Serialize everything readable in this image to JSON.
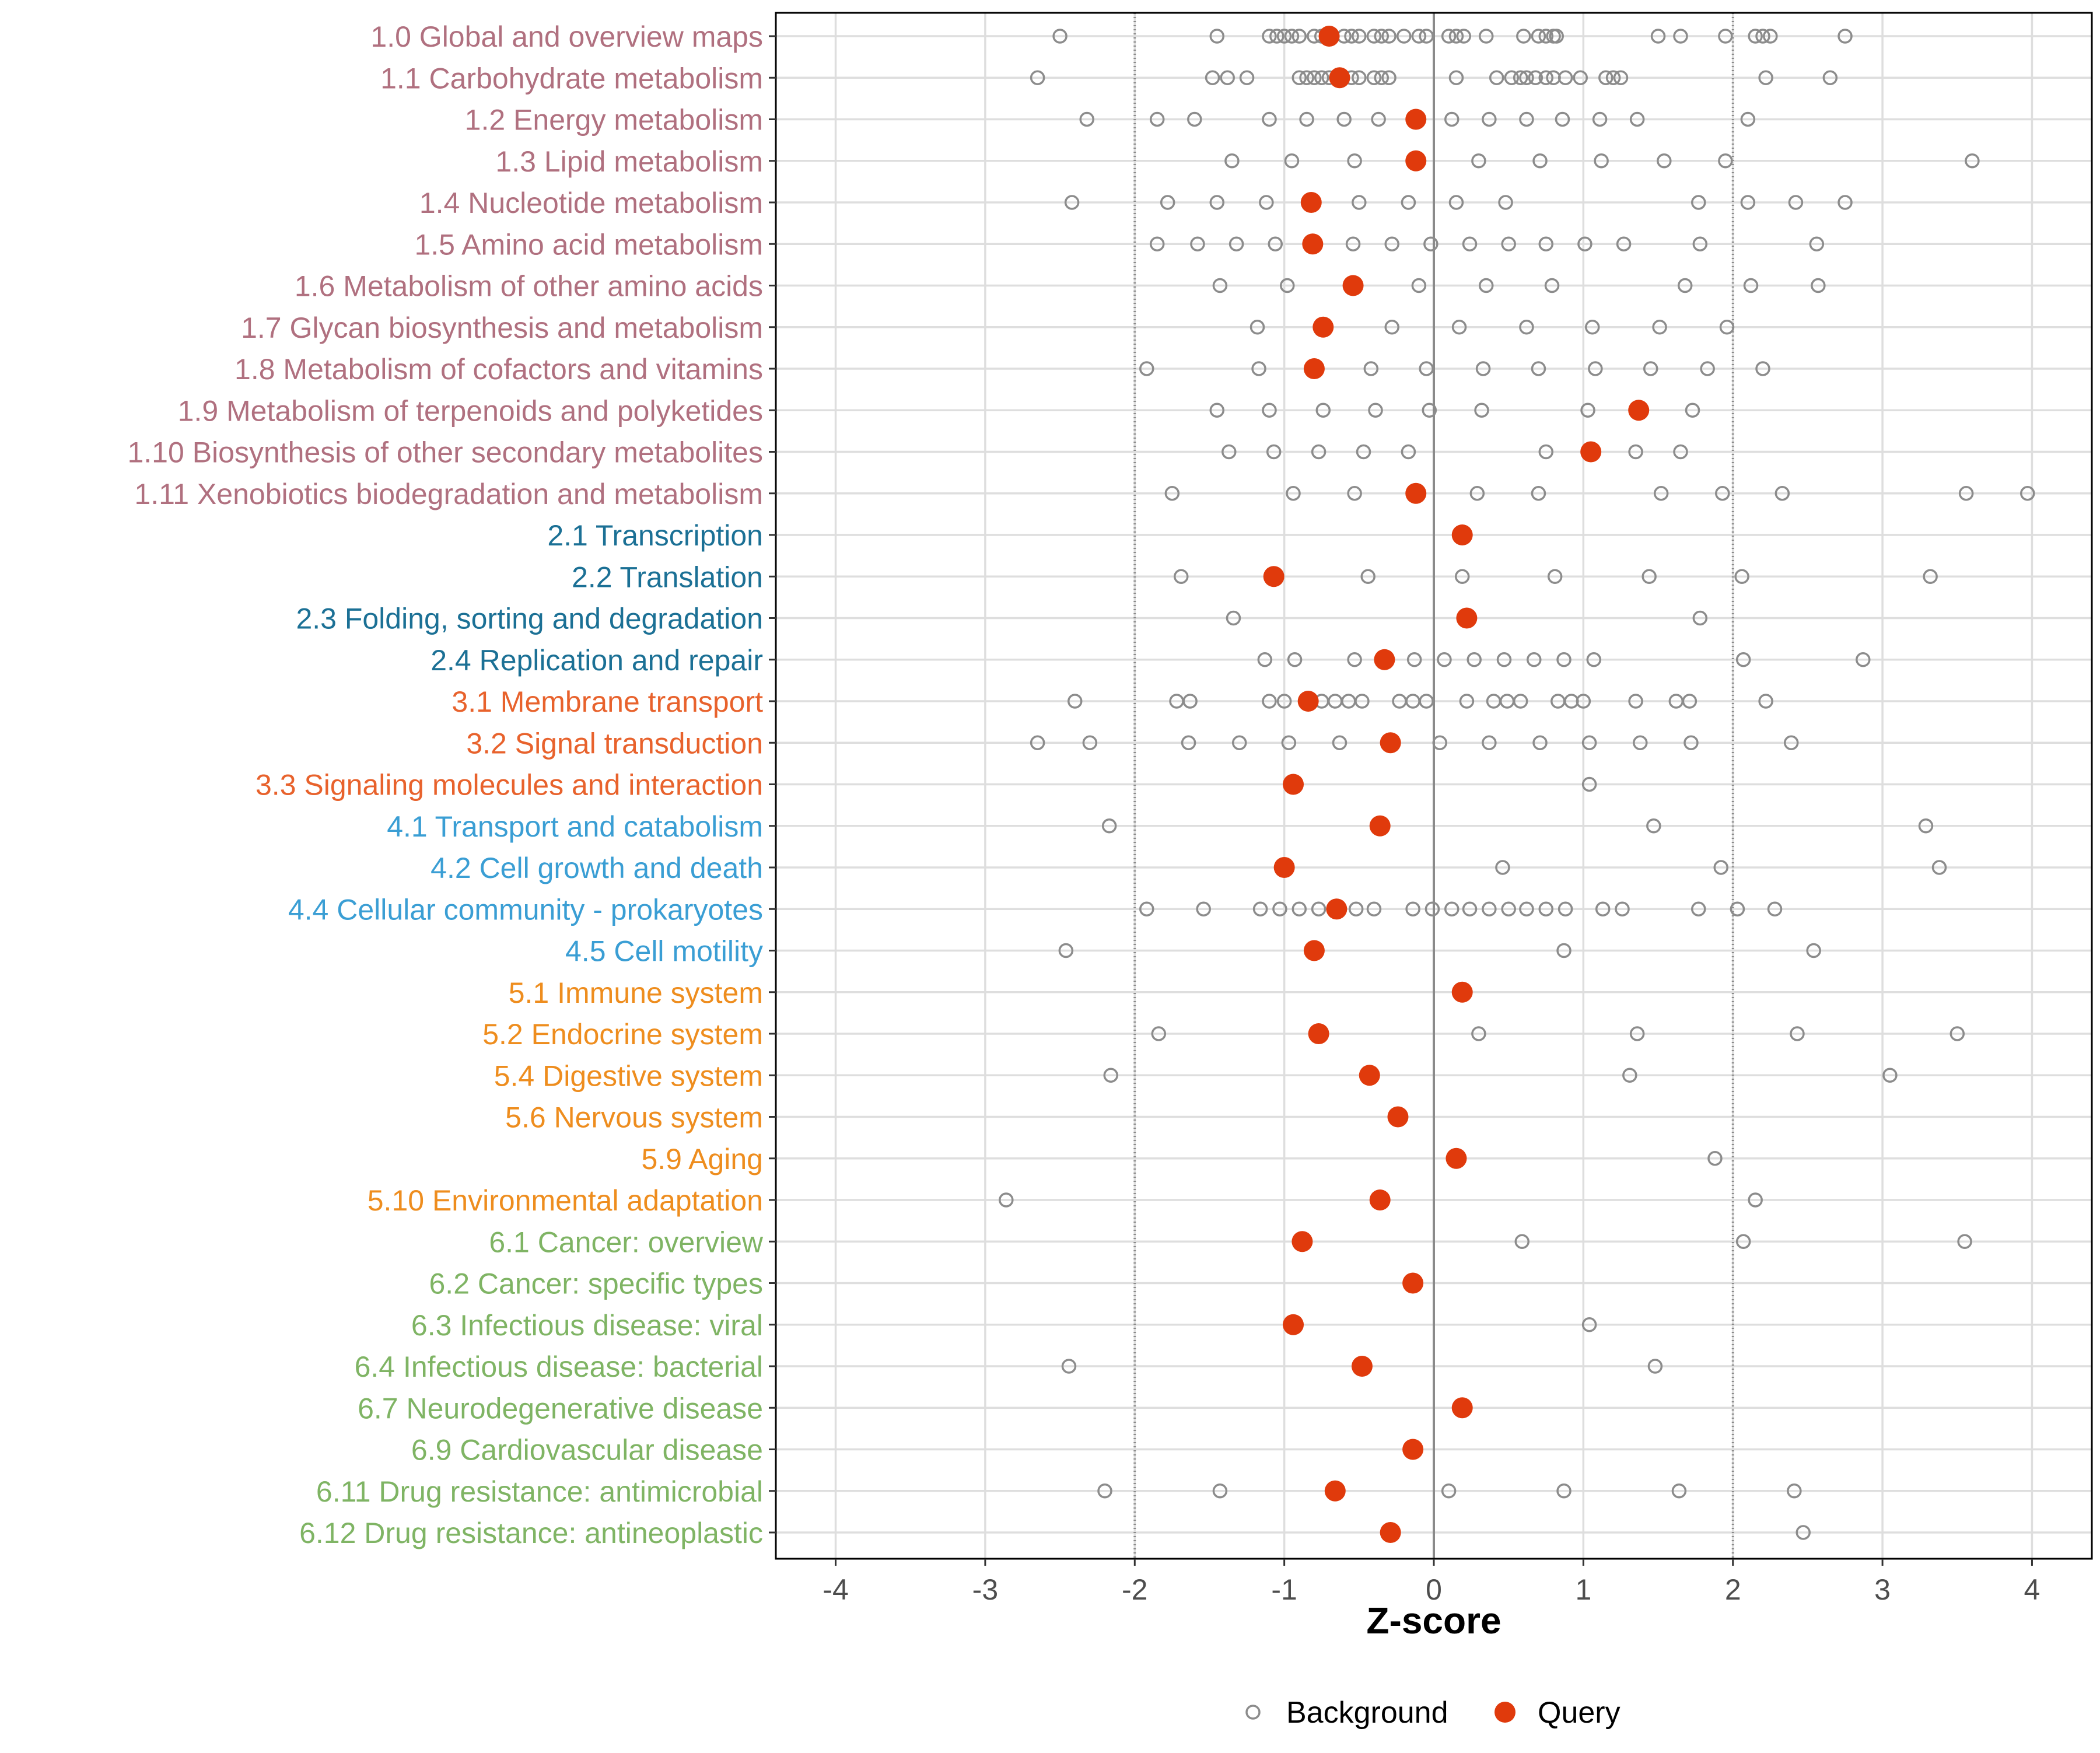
{
  "chart_data": {
    "type": "scatter",
    "xlabel": "Z-score",
    "ylabel": "",
    "xlim": [
      -4.4,
      4.4
    ],
    "x_ticks": [
      -4,
      -3,
      -2,
      -1,
      0,
      1,
      2,
      3,
      4
    ],
    "x_tick_labels": [
      "-4",
      "-3",
      "-2",
      "-1",
      "0",
      "1",
      "2",
      "3",
      "4"
    ],
    "reference_lines": {
      "solid": [
        0
      ],
      "dotted": [
        -2,
        2
      ]
    },
    "grid": true,
    "legend": {
      "position": "bottom",
      "entries": [
        {
          "name": "Background",
          "marker": "open-circle",
          "color": "#8c8c8c"
        },
        {
          "name": "Query",
          "marker": "filled-circle",
          "color": "#e03a0c"
        }
      ]
    },
    "group_colors": {
      "metabolism": "#b0707f",
      "genetic": "#1b7095",
      "environmental": "#e8622c",
      "cellular": "#3a9ed4",
      "organismal": "#ee8d1e",
      "disease": "#7fb464"
    },
    "categories": [
      {
        "label": "1.0 Global and overview maps",
        "group": "metabolism",
        "query": -0.7,
        "background": [
          -2.5,
          -1.45,
          -1.1,
          -1.05,
          -1.0,
          -0.95,
          -0.9,
          -0.8,
          -0.75,
          -0.68,
          -0.6,
          -0.55,
          -0.5,
          -0.4,
          -0.35,
          -0.3,
          -0.2,
          -0.1,
          -0.05,
          0.1,
          0.15,
          0.2,
          0.35,
          0.6,
          0.7,
          0.75,
          0.8,
          0.82,
          1.5,
          1.65,
          1.95,
          2.15,
          2.2,
          2.25,
          2.75
        ]
      },
      {
        "label": "1.1 Carbohydrate metabolism",
        "group": "metabolism",
        "query": -0.63,
        "background": [
          -2.65,
          -1.48,
          -1.38,
          -1.25,
          -0.9,
          -0.85,
          -0.8,
          -0.75,
          -0.7,
          -0.65,
          -0.55,
          -0.5,
          -0.4,
          -0.35,
          -0.3,
          0.15,
          0.42,
          0.52,
          0.58,
          0.62,
          0.68,
          0.75,
          0.8,
          0.88,
          0.98,
          1.15,
          1.2,
          1.25,
          2.22,
          2.65
        ]
      },
      {
        "label": "1.2 Energy metabolism",
        "group": "metabolism",
        "query": -0.12,
        "background": [
          -2.32,
          -1.85,
          -1.6,
          -1.1,
          -0.85,
          -0.6,
          -0.37,
          0.12,
          0.37,
          0.62,
          0.86,
          1.11,
          1.36,
          2.1
        ]
      },
      {
        "label": "1.3 Lipid metabolism",
        "group": "metabolism",
        "query": -0.12,
        "background": [
          -1.35,
          -0.95,
          -0.53,
          0.3,
          0.71,
          1.12,
          1.54,
          1.95,
          3.6
        ]
      },
      {
        "label": "1.4 Nucleotide metabolism",
        "group": "metabolism",
        "query": -0.82,
        "background": [
          -2.42,
          -1.78,
          -1.45,
          -1.12,
          -0.5,
          -0.17,
          0.15,
          0.48,
          1.77,
          2.1,
          2.42,
          2.75
        ]
      },
      {
        "label": "1.5 Amino acid metabolism",
        "group": "metabolism",
        "query": -0.81,
        "background": [
          -1.85,
          -1.58,
          -1.32,
          -1.06,
          -0.54,
          -0.28,
          -0.02,
          0.24,
          0.5,
          0.75,
          1.01,
          1.27,
          1.78,
          2.56
        ]
      },
      {
        "label": "1.6 Metabolism of other amino acids",
        "group": "metabolism",
        "query": -0.54,
        "background": [
          -1.43,
          -0.98,
          -0.1,
          0.35,
          0.79,
          1.68,
          2.12,
          2.57
        ]
      },
      {
        "label": "1.7 Glycan biosynthesis and metabolism",
        "group": "metabolism",
        "query": -0.74,
        "background": [
          -1.18,
          -0.28,
          0.17,
          0.62,
          1.06,
          1.51,
          1.96
        ]
      },
      {
        "label": "1.8 Metabolism of cofactors and vitamins",
        "group": "metabolism",
        "query": -0.8,
        "background": [
          -1.92,
          -1.17,
          -0.42,
          -0.05,
          0.33,
          0.7,
          1.08,
          1.45,
          1.83,
          2.2
        ]
      },
      {
        "label": "1.9 Metabolism of terpenoids and polyketides",
        "group": "metabolism",
        "query": 1.37,
        "background": [
          -1.45,
          -1.1,
          -0.74,
          -0.39,
          -0.03,
          0.32,
          1.03,
          1.73
        ]
      },
      {
        "label": "1.10 Biosynthesis of other secondary metabolites",
        "group": "metabolism",
        "query": 1.05,
        "background": [
          -1.37,
          -1.07,
          -0.77,
          -0.47,
          -0.17,
          0.75,
          1.35,
          1.65
        ]
      },
      {
        "label": "1.11 Xenobiotics biodegradation and metabolism",
        "group": "metabolism",
        "query": -0.12,
        "background": [
          -1.75,
          -0.94,
          -0.53,
          0.29,
          0.7,
          1.52,
          1.93,
          2.33,
          3.56,
          3.97
        ]
      },
      {
        "label": "2.1 Transcription",
        "group": "genetic",
        "query": 0.19,
        "background": []
      },
      {
        "label": "2.2 Translation",
        "group": "genetic",
        "query": -1.07,
        "background": [
          -1.69,
          -0.44,
          0.19,
          0.81,
          1.44,
          2.06,
          3.32
        ]
      },
      {
        "label": "2.3 Folding, sorting and degradation",
        "group": "genetic",
        "query": 0.22,
        "background": [
          -1.34,
          1.78
        ]
      },
      {
        "label": "2.4 Replication and repair",
        "group": "genetic",
        "query": -0.33,
        "background": [
          -1.13,
          -0.93,
          -0.53,
          -0.13,
          0.07,
          0.27,
          0.47,
          0.67,
          0.87,
          1.07,
          2.07,
          2.87
        ]
      },
      {
        "label": "3.1 Membrane transport",
        "group": "environmental",
        "query": -0.84,
        "background": [
          -2.4,
          -1.72,
          -1.63,
          -1.1,
          -1.0,
          -0.75,
          -0.66,
          -0.57,
          -0.48,
          -0.23,
          -0.14,
          -0.05,
          0.22,
          0.4,
          0.49,
          0.58,
          0.83,
          0.92,
          1.0,
          1.35,
          1.62,
          1.71,
          2.22
        ]
      },
      {
        "label": "3.2 Signal transduction",
        "group": "environmental",
        "query": -0.29,
        "background": [
          -2.65,
          -2.3,
          -1.64,
          -1.3,
          -0.97,
          -0.63,
          0.04,
          0.37,
          0.71,
          1.04,
          1.38,
          1.72,
          2.39
        ]
      },
      {
        "label": "3.3 Signaling molecules and interaction",
        "group": "environmental",
        "query": -0.94,
        "background": [
          1.04
        ]
      },
      {
        "label": "4.1 Transport and catabolism",
        "group": "cellular",
        "query": -0.36,
        "background": [
          -2.17,
          1.47,
          3.29
        ]
      },
      {
        "label": "4.2 Cell growth and death",
        "group": "cellular",
        "query": -1.0,
        "background": [
          0.46,
          1.92,
          3.38
        ]
      },
      {
        "label": "4.4 Cellular community - prokaryotes",
        "group": "cellular",
        "query": -0.65,
        "background": [
          -1.92,
          -1.54,
          -1.16,
          -1.03,
          -0.9,
          -0.77,
          -0.52,
          -0.4,
          -0.14,
          -0.01,
          0.12,
          0.24,
          0.37,
          0.5,
          0.62,
          0.75,
          0.88,
          1.13,
          1.26,
          1.77,
          2.03,
          2.28
        ]
      },
      {
        "label": "4.5 Cell motility",
        "group": "cellular",
        "query": -0.8,
        "background": [
          -2.46,
          0.87,
          2.54
        ]
      },
      {
        "label": "5.1 Immune system",
        "group": "organismal",
        "query": 0.19,
        "background": []
      },
      {
        "label": "5.2 Endocrine system",
        "group": "organismal",
        "query": -0.77,
        "background": [
          -1.84,
          0.3,
          1.36,
          2.43,
          3.5
        ]
      },
      {
        "label": "5.4 Digestive system",
        "group": "organismal",
        "query": -0.43,
        "background": [
          -2.16,
          1.31,
          3.05
        ]
      },
      {
        "label": "5.6 Nervous system",
        "group": "organismal",
        "query": -0.24,
        "background": []
      },
      {
        "label": "5.9 Aging",
        "group": "organismal",
        "query": 0.15,
        "background": [
          1.88
        ]
      },
      {
        "label": "5.10 Environmental adaptation",
        "group": "organismal",
        "query": -0.36,
        "background": [
          -2.86,
          2.15
        ]
      },
      {
        "label": "6.1 Cancer: overview",
        "group": "disease",
        "query": -0.88,
        "background": [
          0.59,
          2.07,
          3.55
        ]
      },
      {
        "label": "6.2 Cancer: specific types",
        "group": "disease",
        "query": -0.14,
        "background": []
      },
      {
        "label": "6.3 Infectious disease: viral",
        "group": "disease",
        "query": -0.94,
        "background": [
          1.04
        ]
      },
      {
        "label": "6.4 Infectious disease: bacterial",
        "group": "disease",
        "query": -0.48,
        "background": [
          -2.44,
          1.48
        ]
      },
      {
        "label": "6.7 Neurodegenerative disease",
        "group": "disease",
        "query": 0.19,
        "background": []
      },
      {
        "label": "6.9 Cardiovascular disease",
        "group": "disease",
        "query": -0.14,
        "background": []
      },
      {
        "label": "6.11 Drug resistance: antimicrobial",
        "group": "disease",
        "query": -0.66,
        "background": [
          -2.2,
          -1.43,
          0.1,
          0.87,
          1.64,
          2.41
        ]
      },
      {
        "label": "6.12 Drug resistance: antineoplastic",
        "group": "disease",
        "query": -0.29,
        "background": [
          2.47
        ]
      }
    ]
  }
}
